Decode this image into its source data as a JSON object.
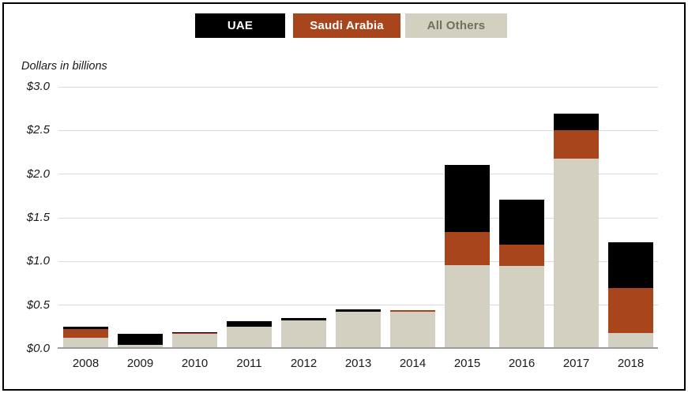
{
  "frame": {
    "border_color": "#000000",
    "background": "#ffffff"
  },
  "chart_data": {
    "type": "bar",
    "stacked": true,
    "note": "Dollars in billions",
    "categories": [
      "2008",
      "2009",
      "2010",
      "2011",
      "2012",
      "2013",
      "2014",
      "2015",
      "2016",
      "2017",
      "2018"
    ],
    "series": [
      {
        "name": "UAE",
        "color": "#000000",
        "text_color": "#ffffff",
        "values": [
          0.02,
          0.12,
          0.01,
          0.07,
          0.02,
          0.02,
          0.0,
          0.77,
          0.52,
          0.19,
          0.52
        ]
      },
      {
        "name": "Saudi Arabia",
        "color": "#a8451c",
        "text_color": "#ffffff",
        "values": [
          0.1,
          0.0,
          0.01,
          0.0,
          0.0,
          0.0,
          0.01,
          0.38,
          0.24,
          0.32,
          0.52
        ]
      },
      {
        "name": "All Others",
        "color": "#d3d0c1",
        "text_color": "#70705f",
        "values": [
          0.12,
          0.04,
          0.16,
          0.24,
          0.32,
          0.42,
          0.42,
          0.95,
          0.94,
          2.17,
          0.17
        ]
      }
    ],
    "stack_order_bottom_to_top": [
      "All Others",
      "Saudi Arabia",
      "UAE"
    ],
    "y_ticks": [
      {
        "value": 0.0,
        "label": "$0.0"
      },
      {
        "value": 0.5,
        "label": "$0.5"
      },
      {
        "value": 1.0,
        "label": "$1.0"
      },
      {
        "value": 1.5,
        "label": "$1.5"
      },
      {
        "value": 2.0,
        "label": "$2.0"
      },
      {
        "value": 2.5,
        "label": "$2.5"
      },
      {
        "value": 3.0,
        "label": "$3.0"
      }
    ],
    "ylim": [
      0,
      3.0
    ],
    "grid": true,
    "gridline_color": "#d9d9d9",
    "axis_color": "#9d9d9d",
    "legend_position": "top-center"
  }
}
